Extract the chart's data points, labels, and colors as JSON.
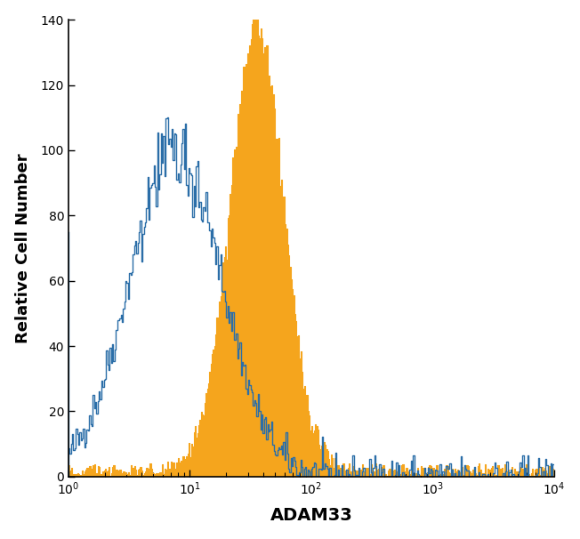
{
  "xlabel": "ADAM33",
  "ylabel": "Relative Cell Number",
  "xlim_log": [
    1,
    10000
  ],
  "ylim": [
    0,
    140
  ],
  "yticks": [
    0,
    20,
    40,
    60,
    80,
    100,
    120,
    140
  ],
  "blue_color": "#2B6EA8",
  "orange_color": "#F5A51D",
  "bg_color": "#ffffff",
  "blue_peak_log_x": 0.88,
  "blue_peak_y": 100,
  "blue_sigma": 0.38,
  "orange_peak_log_x": 1.55,
  "orange_peak_y": 138,
  "orange_sigma": 0.22,
  "n_bins": 400,
  "log_min": 0.0,
  "log_max": 4.0,
  "noise_seed": 42
}
